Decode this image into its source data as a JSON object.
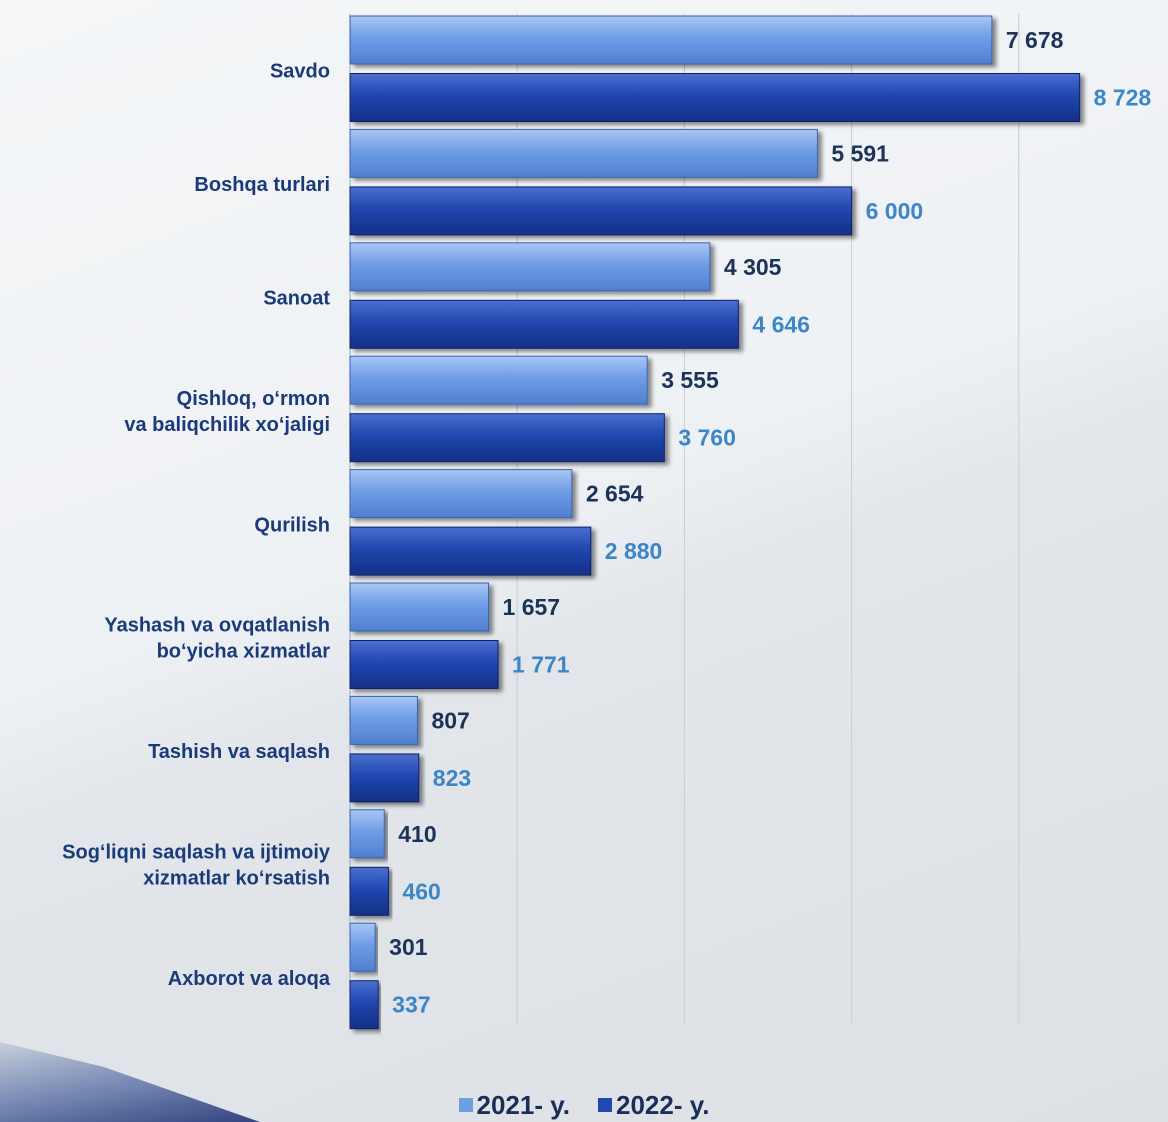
{
  "chart_data": {
    "type": "bar",
    "orientation": "horizontal",
    "categories": [
      "Savdo",
      "Boshqa turlari",
      "Sanoat",
      "Qishloq, o‘rmon\nva baliqchilik xo‘jaligi",
      "Qurilish",
      "Yashash va ovqatlanish\nbo‘yicha xizmatlar",
      "Tashish va saqlash",
      "Sog‘liqni saqlash va ijtimoiy\nxizmatlar ko‘rsatish",
      "Axborot va aloqa"
    ],
    "series": [
      {
        "name": "2021- y.",
        "values": [
          7678,
          5591,
          4305,
          3555,
          2654,
          1657,
          807,
          410,
          301
        ],
        "labels": [
          "7 678",
          "5 591",
          "4 305",
          "3 555",
          "2 654",
          "1 657",
          "807",
          "410",
          "301"
        ]
      },
      {
        "name": "2022- y.",
        "values": [
          8728,
          6000,
          4646,
          3760,
          2880,
          1771,
          823,
          460,
          337
        ],
        "labels": [
          "8 728",
          "6 000",
          "4 646",
          "3 760",
          "2 880",
          "1 771",
          "823",
          "460",
          "337"
        ]
      }
    ],
    "xlim": [
      0,
      10000
    ],
    "grid": true,
    "legend_position": "bottom",
    "colors": {
      "series_2021": "#6f9de6",
      "series_2022": "#2247b0",
      "label_2021": "#1c3358",
      "label_2022": "#3d86c6",
      "category_label": "#1a3a7a"
    }
  }
}
